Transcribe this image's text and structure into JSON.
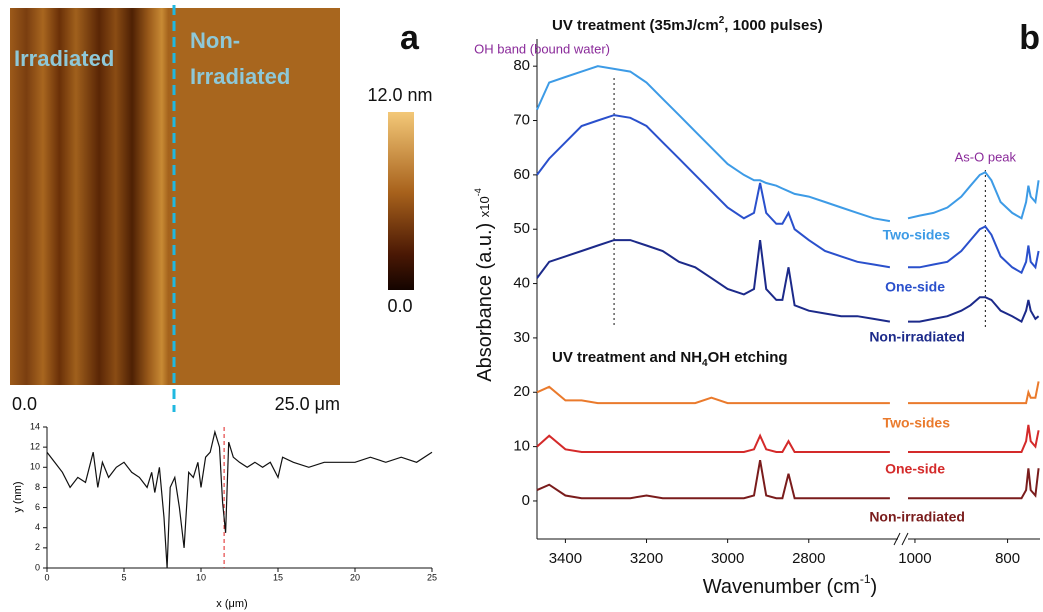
{
  "afm_image": {
    "panel_label": "a",
    "left_label": "Irradiated",
    "right_label": [
      "Non-",
      "Irradiated"
    ],
    "x_start": "0.0",
    "x_end": "25.0 μm",
    "colorbar_max": "12.0 nm",
    "colorbar_min": "0.0"
  },
  "chart_data": [
    {
      "type": "line",
      "xlabel": "x (μm)",
      "ylabel": "y (nm)",
      "color": "#111111",
      "marker_x": 11.5,
      "marker_color": "#e02020",
      "xlim": [
        0,
        25
      ],
      "xticks": [
        0,
        5,
        10,
        15,
        20,
        25
      ],
      "ylim": [
        0,
        14
      ],
      "yticks": [
        0,
        2,
        4,
        6,
        8,
        10,
        12,
        14
      ],
      "x": [
        0,
        0.5,
        1,
        1.5,
        2,
        2.5,
        3,
        3.3,
        3.6,
        4,
        4.5,
        5,
        5.5,
        6,
        6.5,
        6.8,
        7,
        7.3,
        7.6,
        7.8,
        8,
        8.3,
        8.6,
        8.9,
        9.2,
        9.5,
        9.8,
        10,
        10.3,
        10.6,
        10.9,
        11.2,
        11.4,
        11.6,
        11.8,
        12.1,
        12.5,
        13,
        13.5,
        14,
        14.5,
        15,
        15.3,
        16,
        17,
        18,
        19,
        20,
        21,
        22,
        23,
        24,
        25
      ],
      "values": [
        11.5,
        10.5,
        9.5,
        8,
        9,
        8.5,
        11.5,
        8,
        10.5,
        9,
        10,
        10.5,
        9.5,
        9,
        8,
        9.5,
        7.5,
        10,
        5,
        0,
        8,
        9,
        6,
        2,
        9.5,
        9,
        10.5,
        8,
        11,
        11.5,
        13.5,
        12,
        6.5,
        3.5,
        12.5,
        11,
        10.5,
        10,
        10.5,
        10,
        10.5,
        9,
        11,
        10.5,
        10,
        10.5,
        10.5,
        10.5,
        11,
        10.5,
        11,
        10.5,
        11.5
      ]
    },
    {
      "type": "line",
      "panel_label": "b",
      "heading_1": [
        "UV treatment (35mJ/cm",
        "2",
        ", 1000 pulses)"
      ],
      "heading_2": [
        "UV treatment and NH",
        "4",
        "OH etching"
      ],
      "xlabel": [
        "Wavenumber (cm",
        "-1",
        ")"
      ],
      "ylabel": [
        "Absorbance (a.u.) ",
        "x10",
        "-4"
      ],
      "xlim_segments": [
        [
          3470,
          2580
        ],
        [
          1015,
          730
        ]
      ],
      "xticks": [
        3400,
        3200,
        3000,
        2800,
        1000,
        800
      ],
      "ylim": [
        -7,
        85
      ],
      "yticks": [
        0,
        10,
        20,
        30,
        40,
        50,
        60,
        70,
        80
      ],
      "annotations": [
        {
          "text": "OH band (bound water)",
          "x": 3280,
          "color": "#8a2a9a"
        },
        {
          "text": "As-O peak",
          "x": 848,
          "color": "#8a2a9a"
        }
      ],
      "x": [
        3470,
        3440,
        3400,
        3360,
        3320,
        3280,
        3240,
        3200,
        3160,
        3120,
        3080,
        3040,
        3000,
        2960,
        2935,
        2920,
        2905,
        2880,
        2865,
        2850,
        2835,
        2800,
        2760,
        2720,
        2680,
        2640,
        2600,
        null,
        1015,
        990,
        960,
        930,
        900,
        880,
        860,
        848,
        835,
        815,
        790,
        770,
        760,
        755,
        750,
        740,
        733
      ],
      "series": [
        {
          "name": "Two-sides",
          "color": "#3d9be6",
          "values": [
            72,
            77,
            78,
            79,
            80,
            79.5,
            79,
            77,
            74,
            71,
            68,
            65,
            62,
            60,
            59,
            59,
            58.5,
            58,
            57.5,
            57,
            56.5,
            56,
            55,
            54,
            53,
            52,
            51.5,
            null,
            52,
            52.5,
            53,
            54,
            56,
            58,
            60,
            60.5,
            59,
            55,
            53,
            52,
            55,
            58,
            56,
            55,
            59
          ]
        },
        {
          "name": "One-side",
          "color": "#2a50cc",
          "values": [
            60,
            63,
            66,
            69,
            70,
            71,
            70.5,
            69,
            66,
            63,
            60,
            57,
            54,
            52,
            53,
            58.5,
            53,
            51,
            51,
            53,
            50,
            48,
            46,
            45,
            44,
            43.5,
            43,
            null,
            43,
            43,
            43.5,
            44,
            46,
            48,
            50,
            50.5,
            49,
            45,
            43,
            42,
            44,
            47,
            44,
            43,
            46
          ]
        },
        {
          "name": "Non-irradiated",
          "color": "#1c2a8a",
          "values": [
            41,
            44,
            45,
            46,
            47,
            48,
            48,
            47,
            46,
            44,
            43,
            41,
            39,
            38,
            39,
            48,
            39,
            37,
            37,
            43,
            36,
            35,
            34.5,
            34,
            34,
            33.5,
            33,
            null,
            33,
            33,
            33.5,
            34,
            35,
            36,
            37.5,
            37.5,
            37,
            35,
            34,
            33,
            35,
            37,
            35,
            33.5,
            34
          ]
        },
        {
          "name": "Two-sides",
          "color": "#ea7a2c",
          "values": [
            20,
            21,
            18.5,
            18.5,
            18,
            18,
            18,
            18,
            18,
            18,
            18,
            19,
            18,
            18,
            18,
            18,
            18,
            18,
            18,
            18,
            18,
            18,
            18,
            18,
            18,
            18,
            18,
            null,
            18,
            18,
            18,
            18,
            18,
            18,
            18,
            18,
            18,
            18,
            18,
            18,
            18,
            20,
            19,
            19,
            22
          ]
        },
        {
          "name": "One-side",
          "color": "#d42a2a",
          "values": [
            10,
            12,
            9.5,
            9,
            9,
            9,
            9,
            9,
            9,
            9,
            9,
            9,
            9,
            9,
            9.5,
            12,
            9.5,
            9,
            9,
            11,
            9,
            9,
            9,
            9,
            9,
            9,
            9,
            null,
            9,
            9,
            9,
            9,
            9,
            9,
            9,
            9,
            9,
            9,
            9,
            9,
            11,
            14,
            11,
            10,
            13
          ]
        },
        {
          "name": "Non-irradiated",
          "color": "#7a1c1c",
          "values": [
            2,
            3,
            1,
            0.5,
            0.5,
            0.5,
            0.5,
            1,
            0.5,
            0.5,
            0.5,
            0.5,
            0.5,
            0.5,
            1,
            7.5,
            1,
            0.5,
            0.5,
            5,
            0.5,
            0.5,
            0.5,
            0.5,
            0.5,
            0.5,
            0.5,
            null,
            0.5,
            0.5,
            0.5,
            0.5,
            0.5,
            0.5,
            0.5,
            0.5,
            0.5,
            0.5,
            0.5,
            0.5,
            2,
            6,
            2,
            1,
            6
          ]
        }
      ]
    }
  ]
}
